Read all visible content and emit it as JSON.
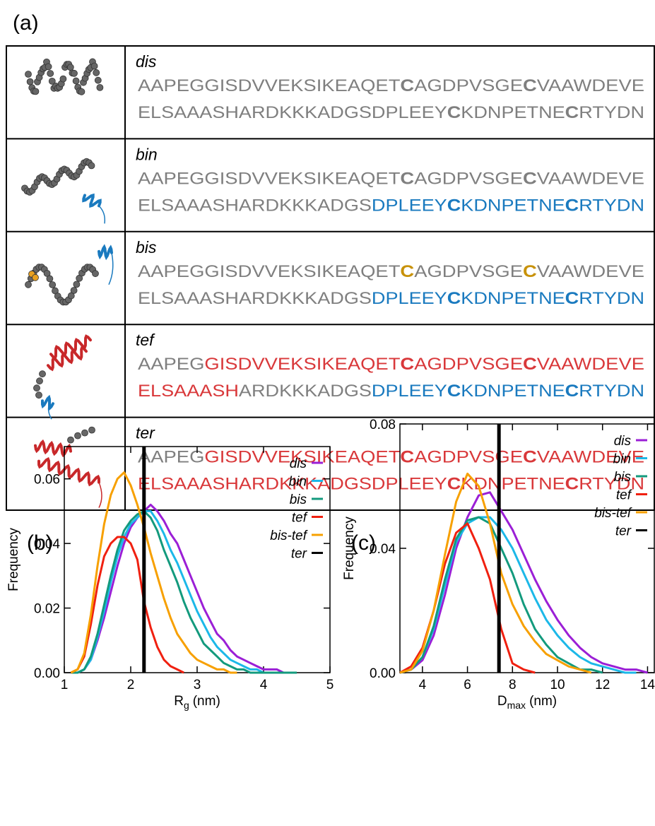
{
  "panel_labels": [
    "(a)",
    "(b)",
    "(c)"
  ],
  "table": {
    "rows": [
      {
        "name": "dis",
        "lines": [
          [
            {
              "text": "AAPEGGISDVVEKSIKEAQET",
              "color": "#7f7f7f"
            },
            {
              "text": "C",
              "color": "#7f7f7f",
              "bold": true
            },
            {
              "text": "AGDPVSGE",
              "color": "#7f7f7f"
            },
            {
              "text": "C",
              "color": "#7f7f7f",
              "bold": true
            },
            {
              "text": "VAAWDEVE",
              "color": "#7f7f7f"
            }
          ],
          [
            {
              "text": "ELSAAASHARDKKKADGSDPLEEY",
              "color": "#7f7f7f"
            },
            {
              "text": "C",
              "color": "#7f7f7f",
              "bold": true
            },
            {
              "text": "KDNPETNE",
              "color": "#7f7f7f"
            },
            {
              "text": "C",
              "color": "#7f7f7f",
              "bold": true
            },
            {
              "text": "RTYDN",
              "color": "#7f7f7f"
            }
          ]
        ]
      },
      {
        "name": "bin",
        "lines": [
          [
            {
              "text": "AAPEGGISDVVEKSIKEAQET",
              "color": "#7f7f7f"
            },
            {
              "text": "C",
              "color": "#7f7f7f",
              "bold": true
            },
            {
              "text": "AGDPVSGE",
              "color": "#7f7f7f"
            },
            {
              "text": "C",
              "color": "#7f7f7f",
              "bold": true
            },
            {
              "text": "VAAWDEVE",
              "color": "#7f7f7f"
            }
          ],
          [
            {
              "text": "ELSAAASHARDKKKADGS",
              "color": "#7f7f7f"
            },
            {
              "text": "DPLEEY",
              "color": "#1a7abf"
            },
            {
              "text": "C",
              "color": "#1a7abf",
              "bold": true
            },
            {
              "text": "KDNPETNE",
              "color": "#1a7abf"
            },
            {
              "text": "C",
              "color": "#1a7abf",
              "bold": true
            },
            {
              "text": "RTYDN",
              "color": "#1a7abf"
            }
          ]
        ]
      },
      {
        "name": "bis",
        "lines": [
          [
            {
              "text": "AAPEGGISDVVEKSIKEAQET",
              "color": "#7f7f7f"
            },
            {
              "text": "C",
              "color": "#c8920a",
              "bold": true
            },
            {
              "text": "AGDPVSGE",
              "color": "#7f7f7f"
            },
            {
              "text": "C",
              "color": "#c8920a",
              "bold": true
            },
            {
              "text": "VAAWDEVE",
              "color": "#7f7f7f"
            }
          ],
          [
            {
              "text": "ELSAAASHARDKKKADGS",
              "color": "#7f7f7f"
            },
            {
              "text": "DPLEEY",
              "color": "#1a7abf"
            },
            {
              "text": "C",
              "color": "#1a7abf",
              "bold": true
            },
            {
              "text": "KDNPETNE",
              "color": "#1a7abf"
            },
            {
              "text": "C",
              "color": "#1a7abf",
              "bold": true
            },
            {
              "text": "RTYDN",
              "color": "#1a7abf"
            }
          ]
        ]
      },
      {
        "name": "tef",
        "lines": [
          [
            {
              "text": "AAPEG",
              "color": "#7f7f7f"
            },
            {
              "text": "GISDVVEKSIKEAQET",
              "color": "#d9383a"
            },
            {
              "text": "C",
              "color": "#d9383a",
              "bold": true
            },
            {
              "text": "AGDPVSGE",
              "color": "#d9383a"
            },
            {
              "text": "C",
              "color": "#d9383a",
              "bold": true
            },
            {
              "text": "VAAWDEVE",
              "color": "#d9383a"
            }
          ],
          [
            {
              "text": "ELSAAASH",
              "color": "#d9383a"
            },
            {
              "text": "ARDKKKADGS",
              "color": "#7f7f7f"
            },
            {
              "text": "DPLEEY",
              "color": "#1a7abf"
            },
            {
              "text": "C",
              "color": "#1a7abf",
              "bold": true
            },
            {
              "text": "KDNPETNE",
              "color": "#1a7abf"
            },
            {
              "text": "C",
              "color": "#1a7abf",
              "bold": true
            },
            {
              "text": "RTYDN",
              "color": "#1a7abf"
            }
          ]
        ]
      },
      {
        "name": "ter",
        "lines": [
          [
            {
              "text": "AAPEG",
              "color": "#7f7f7f"
            },
            {
              "text": "GISDVVEKSIKEAQET",
              "color": "#d9383a"
            },
            {
              "text": "C",
              "color": "#d9383a",
              "bold": true
            },
            {
              "text": "AGDPVSGE",
              "color": "#d9383a"
            },
            {
              "text": "C",
              "color": "#d9383a",
              "bold": true
            },
            {
              "text": "VAAWDEVE",
              "color": "#d9383a"
            }
          ],
          [
            {
              "text": "ELSAAASHARDKKKADGSDPLEEY",
              "color": "#d9383a"
            },
            {
              "text": "C",
              "color": "#d9383a",
              "bold": true
            },
            {
              "text": "KDNPETNE",
              "color": "#d9383a"
            },
            {
              "text": "C",
              "color": "#d9383a",
              "bold": true
            },
            {
              "text": "RTYDN",
              "color": "#d9383a"
            }
          ]
        ]
      }
    ]
  },
  "chart_data": [
    {
      "type": "line",
      "ylabel": "Frequency",
      "xlabel": "R",
      "xlabel_sub": "g",
      "xlabel_unit": "(nm)",
      "xlim": [
        1,
        5
      ],
      "xticks": [
        1,
        2,
        3,
        4,
        5
      ],
      "ylim": [
        0,
        0.07
      ],
      "yticks": [
        {
          "value": 0,
          "label": "0.00"
        },
        {
          "value": 0.02,
          "label": "0.02"
        },
        {
          "value": 0.04,
          "label": "0.04"
        },
        {
          "value": 0.06,
          "label": "0.06"
        }
      ],
      "legend": "upper right",
      "x": [
        1.1,
        1.2,
        1.3,
        1.4,
        1.5,
        1.6,
        1.7,
        1.8,
        1.9,
        2.0,
        2.1,
        2.2,
        2.3,
        2.4,
        2.5,
        2.6,
        2.7,
        2.8,
        2.9,
        3.0,
        3.1,
        3.2,
        3.3,
        3.4,
        3.5,
        3.6,
        3.7,
        3.8,
        3.9,
        4.0,
        4.1,
        4.2,
        4.3,
        4.4,
        4.5
      ],
      "series": [
        {
          "name": "dis",
          "color": "#9b1fd6",
          "values": [
            0,
            0,
            0.001,
            0.004,
            0.01,
            0.017,
            0.025,
            0.033,
            0.04,
            0.045,
            0.048,
            0.05,
            0.052,
            0.05,
            0.047,
            0.043,
            0.04,
            0.035,
            0.03,
            0.025,
            0.02,
            0.016,
            0.012,
            0.01,
            0.007,
            0.005,
            0.004,
            0.003,
            0.002,
            0.001,
            0.001,
            0.001,
            0,
            0,
            0
          ]
        },
        {
          "name": "bin",
          "color": "#1cb8e8",
          "values": [
            0,
            0,
            0.001,
            0.004,
            0.011,
            0.019,
            0.028,
            0.036,
            0.042,
            0.046,
            0.048,
            0.05,
            0.05,
            0.047,
            0.043,
            0.038,
            0.034,
            0.029,
            0.024,
            0.019,
            0.015,
            0.011,
            0.008,
            0.006,
            0.004,
            0.003,
            0.002,
            0.001,
            0.001,
            0,
            0,
            0,
            0,
            0,
            0
          ]
        },
        {
          "name": "bis",
          "color": "#139a7d",
          "values": [
            0,
            0,
            0.001,
            0.005,
            0.012,
            0.021,
            0.03,
            0.038,
            0.044,
            0.047,
            0.049,
            0.05,
            0.048,
            0.044,
            0.038,
            0.033,
            0.028,
            0.022,
            0.017,
            0.013,
            0.009,
            0.007,
            0.005,
            0.003,
            0.002,
            0.001,
            0.001,
            0,
            0,
            0,
            0,
            0,
            0,
            0,
            0
          ]
        },
        {
          "name": "tef",
          "color": "#f02010",
          "values": [
            0,
            0.001,
            0.005,
            0.015,
            0.027,
            0.036,
            0.04,
            0.042,
            0.042,
            0.04,
            0.035,
            0.022,
            0.014,
            0.008,
            0.004,
            0.002,
            0.001,
            0,
            null,
            null,
            null,
            null,
            null,
            null,
            null,
            null,
            null,
            null,
            null,
            null,
            null,
            null,
            null,
            null,
            null
          ]
        },
        {
          "name": "bis-tef",
          "color": "#f7a000",
          "values": [
            0,
            0.001,
            0.006,
            0.018,
            0.033,
            0.046,
            0.055,
            0.06,
            0.062,
            0.058,
            0.052,
            0.045,
            0.037,
            0.03,
            0.023,
            0.017,
            0.012,
            0.009,
            0.006,
            0.004,
            0.003,
            0.002,
            0.001,
            0.001,
            0,
            0,
            null,
            null,
            null,
            null,
            null,
            null,
            null,
            null,
            null
          ]
        },
        {
          "name": "ter",
          "color": "#000000",
          "vline_x": 2.2
        }
      ]
    },
    {
      "type": "line",
      "ylabel": "Frequency",
      "xlabel": "D",
      "xlabel_sub": "max",
      "xlabel_unit": "(nm)",
      "xlim": [
        3,
        14.3
      ],
      "xticks": [
        4,
        6,
        8,
        10,
        12,
        14
      ],
      "ylim": [
        0,
        0.08
      ],
      "yticks": [
        {
          "value": 0,
          "label": "0.00"
        },
        {
          "value": 0.04,
          "label": "0.04"
        },
        {
          "value": 0.08,
          "label": "0.08"
        }
      ],
      "legend": "upper right",
      "x": [
        3,
        3.5,
        4,
        4.5,
        5,
        5.5,
        6,
        6.5,
        7,
        7.5,
        8,
        8.5,
        9,
        9.5,
        10,
        10.5,
        11,
        11.5,
        12,
        12.5,
        13,
        13.5,
        14
      ],
      "series": [
        {
          "name": "dis",
          "color": "#9b1fd6",
          "values": [
            0,
            0.001,
            0.004,
            0.012,
            0.025,
            0.04,
            0.05,
            0.057,
            0.058,
            0.052,
            0.046,
            0.038,
            0.03,
            0.023,
            0.017,
            0.012,
            0.008,
            0.005,
            0.003,
            0.002,
            0.001,
            0.001,
            0
          ]
        },
        {
          "name": "bin",
          "color": "#1cb8e8",
          "values": [
            0,
            0.001,
            0.005,
            0.014,
            0.028,
            0.042,
            0.048,
            0.05,
            0.05,
            0.046,
            0.04,
            0.032,
            0.024,
            0.017,
            0.012,
            0.008,
            0.005,
            0.003,
            0.002,
            0.001,
            0,
            0,
            null
          ]
        },
        {
          "name": "bis",
          "color": "#139a7d",
          "values": [
            0,
            0.001,
            0.005,
            0.015,
            0.03,
            0.043,
            0.049,
            0.05,
            0.048,
            0.04,
            0.032,
            0.022,
            0.014,
            0.009,
            0.005,
            0.003,
            0.001,
            0.001,
            0,
            null,
            null,
            null,
            null
          ]
        },
        {
          "name": "tef",
          "color": "#f02010",
          "values": [
            0,
            0.002,
            0.008,
            0.02,
            0.035,
            0.045,
            0.048,
            0.04,
            0.03,
            0.014,
            0.003,
            0.001,
            0,
            null,
            null,
            null,
            null,
            null,
            null,
            null,
            null,
            null,
            null
          ]
        },
        {
          "name": "bis-tef",
          "color": "#f7a000",
          "values": [
            0,
            0.001,
            0.007,
            0.02,
            0.038,
            0.055,
            0.064,
            0.06,
            0.048,
            0.032,
            0.022,
            0.015,
            0.01,
            0.006,
            0.004,
            0.002,
            0.001,
            0,
            null,
            null,
            null,
            null,
            null
          ]
        },
        {
          "name": "ter",
          "color": "#000000",
          "vline_x": 7.4
        }
      ]
    }
  ]
}
